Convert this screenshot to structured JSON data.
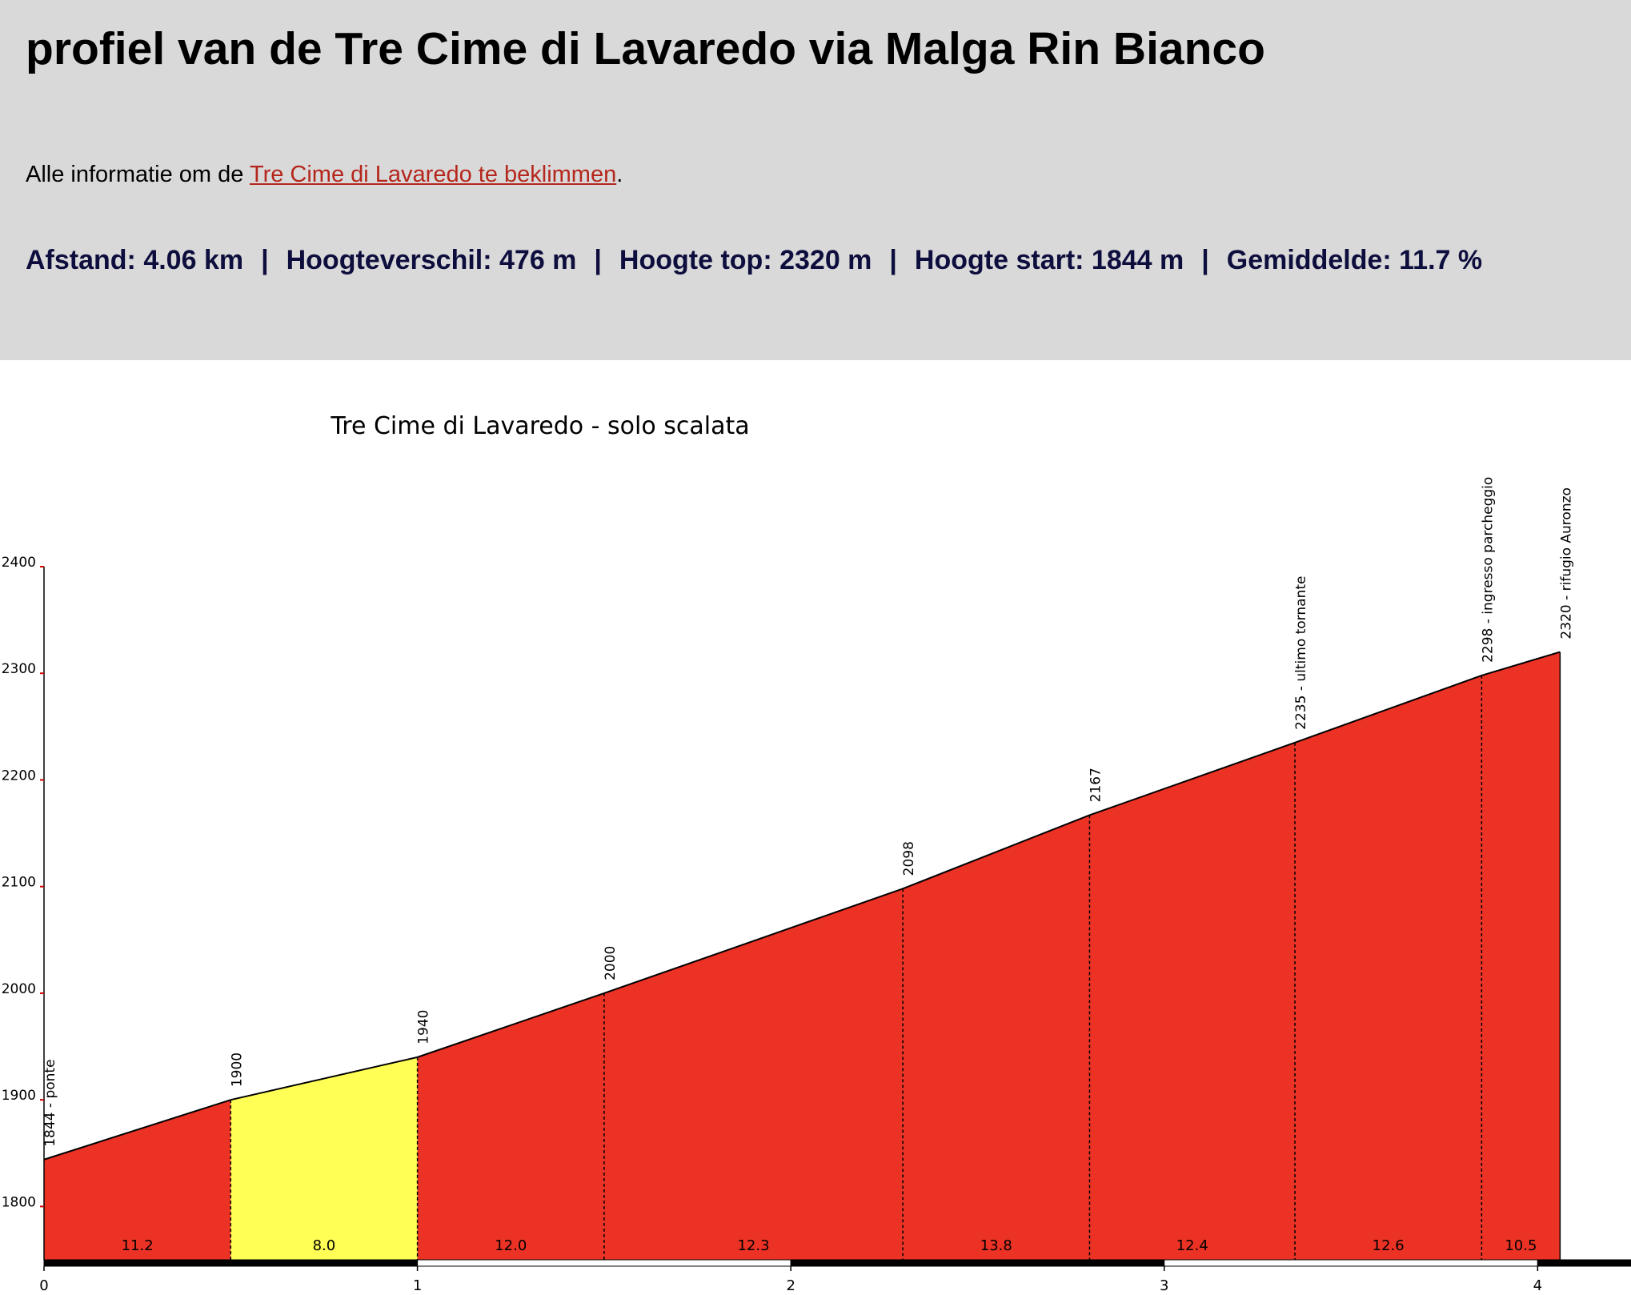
{
  "header": {
    "title": "profiel van de Tre Cime di Lavaredo via Malga Rin Bianco",
    "intro": {
      "before": "Alle informatie om de ",
      "link": "Tre Cime di Lavaredo te beklimmen",
      "after": "."
    },
    "stats": [
      "Afstand: 4.06 km",
      "Hoogteverschil: 476 m",
      "Hoogte top: 2320 m",
      "Hoogte start: 1844 m",
      "Gemiddelde: 11.7 %"
    ],
    "separator": "|"
  },
  "chart_data": {
    "type": "area",
    "title": "Tre Cime di Lavaredo - solo scalata",
    "x": [
      0,
      0.5,
      1.0,
      1.5,
      2.3,
      2.8,
      3.35,
      3.85,
      4.06
    ],
    "values": [
      1844,
      1900,
      1940,
      2000,
      2098,
      2167,
      2235,
      2298,
      2320
    ],
    "value_labels": [
      "1844 - ponte",
      "1900",
      "1940",
      "2000",
      "2098",
      "2167",
      "2235 - ultimo tornante",
      "2298 - ingresso parcheggio",
      "2320 - rifugio Auronzo"
    ],
    "gradients": [
      11.2,
      8.0,
      12.0,
      12.3,
      13.8,
      12.4,
      12.6,
      10.5
    ],
    "gradient_labels": [
      "11.2",
      "8.0",
      "12.0",
      "12.3",
      "13.8",
      "12.4",
      "12.6",
      "10.5"
    ],
    "segment_colors": [
      "#ec3224",
      "#ffff55",
      "#ec3224",
      "#ec3224",
      "#ec3224",
      "#ec3224",
      "#ec3224",
      "#ec3224"
    ],
    "xlim": [
      0,
      4.25
    ],
    "xticks": [
      0,
      1,
      2,
      3,
      4
    ],
    "ylim": [
      1750,
      2400
    ],
    "yticks": [
      1800,
      1900,
      2000,
      2100,
      2200,
      2300,
      2400
    ]
  }
}
